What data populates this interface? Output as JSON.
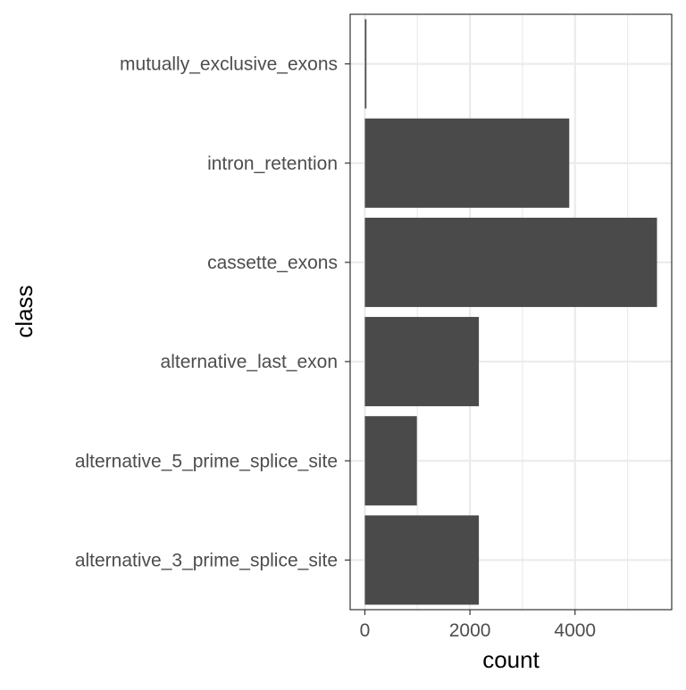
{
  "chart_data": {
    "type": "bar",
    "orientation": "horizontal",
    "title": "",
    "xlabel": "count",
    "ylabel": "class",
    "categories": [
      "alternative_3_prime_splice_site",
      "alternative_5_prime_splice_site",
      "alternative_last_exon",
      "cassette_exons",
      "intron_retention",
      "mutually_exclusive_exons"
    ],
    "values": [
      2170,
      990,
      2170,
      5560,
      3890,
      30
    ],
    "xlim": [
      -280,
      5840
    ],
    "xticks": [
      0,
      2000,
      4000
    ],
    "xtick_labels": [
      "0",
      "2000",
      "4000"
    ],
    "x_minor_ticks": [
      1000,
      3000,
      5000
    ],
    "grid": true,
    "legend": "none",
    "bar_color": "#4a4a4a",
    "colors": {
      "grid": "#ebebeb",
      "panel_border": "#333333",
      "axis_text": "#4d4d4d",
      "axis_title": "#000000",
      "background": "#ffffff"
    }
  }
}
